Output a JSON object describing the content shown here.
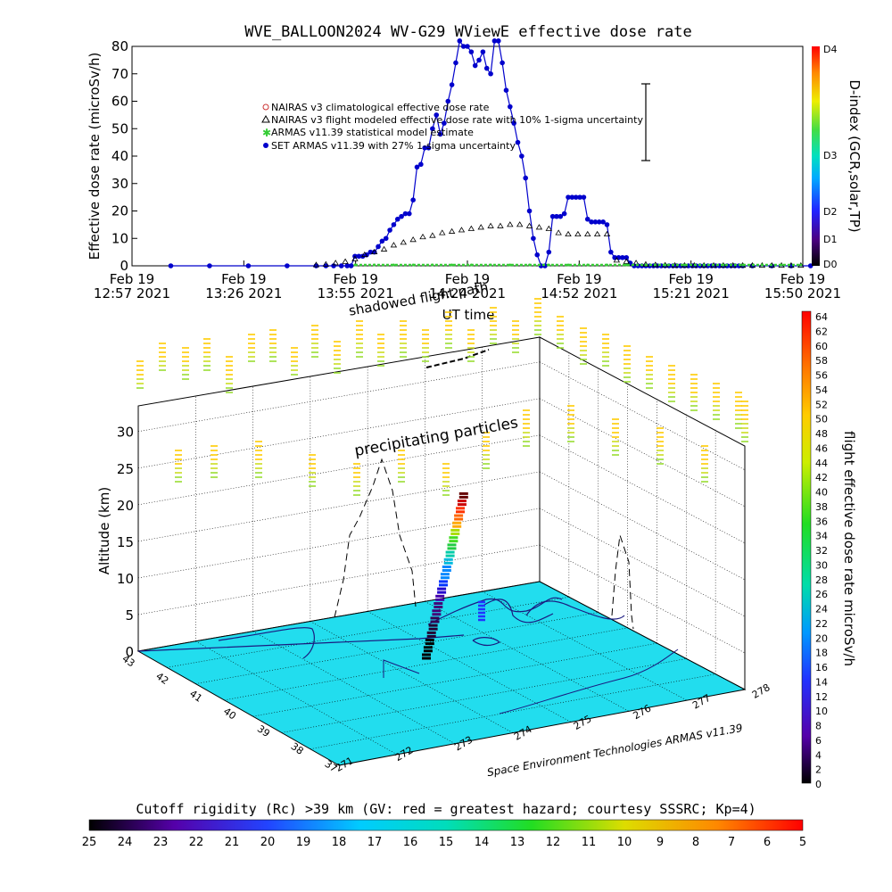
{
  "page_title": "WVE_BALLOON2024 WV-G29 WViewE effective dose rate",
  "colors": {
    "nairas_clim": "#cc3333",
    "nairas_flight": "#000000",
    "armas_stat": "#33cc33",
    "set_armas": "#0000cc",
    "ground": "#22ddee",
    "path": "#1a1a80"
  },
  "legend": [
    {
      "symbol": "diamond-red",
      "label": "NAIRAS v3 climatological effective dose rate"
    },
    {
      "symbol": "triangle",
      "label": "NAIRAS v3 flight modeled effective dose rate with 10% 1-sigma uncertainty"
    },
    {
      "symbol": "star-green",
      "label": "ARMAS v11.39 statistical model estimate"
    },
    {
      "symbol": "dot-blue",
      "label": "SET ARMAS v11.39 with 27% 1-sigma uncertainty"
    }
  ],
  "annotations": {
    "shadowed": "shadowed flight path",
    "precipitating": "precipitating particles",
    "credit": "Space Environment Technologies ARMAS v11.39"
  },
  "right_axis": {
    "label": "D-index (GCR,solar,TP)",
    "ticks": [
      "D4",
      "D3",
      "D2",
      "D1",
      "D0"
    ]
  },
  "colorbar_right": {
    "label": "flight effective dose rate microSv/h",
    "ticks": [
      "64",
      "62",
      "60",
      "58",
      "56",
      "54",
      "52",
      "50",
      "48",
      "46",
      "44",
      "42",
      "40",
      "38",
      "36",
      "34",
      "32",
      "30",
      "28",
      "26",
      "24",
      "22",
      "20",
      "18",
      "16",
      "14",
      "12",
      "10",
      "8",
      "6",
      "4",
      "2",
      "0"
    ]
  },
  "colorbar_bottom": {
    "label": "Cutoff rigidity (Rc) >39 km (GV: red = greatest hazard; courtesy SSSRC; Kp=4)",
    "ticks": [
      "25",
      "24",
      "23",
      "22",
      "21",
      "20",
      "19",
      "18",
      "17",
      "16",
      "15",
      "14",
      "13",
      "12",
      "11",
      "10",
      "9",
      "8",
      "7",
      "6",
      "5"
    ]
  },
  "chart_data": [
    {
      "type": "line",
      "title": "WVE_BALLOON2024 WV-G29 WViewE effective dose rate",
      "xlabel": "UT time",
      "ylabel": "Effective dose rate (microSv/h)",
      "ylim": [
        0,
        80
      ],
      "yticks": [
        "80",
        "70",
        "60",
        "50",
        "40",
        "30",
        "20",
        "10",
        "0"
      ],
      "xticks": [
        {
          "line1": "Feb 19",
          "line2": "12:57 2021"
        },
        {
          "line1": "Feb 19",
          "line2": "13:26 2021"
        },
        {
          "line1": "Feb 19",
          "line2": "13:55 2021"
        },
        {
          "line1": "Feb 19",
          "line2": "14:24 2021"
        },
        {
          "line1": "Feb 19",
          "line2": "14:52 2021"
        },
        {
          "line1": "Feb 19",
          "line2": "15:21 2021"
        },
        {
          "line1": "Feb 19",
          "line2": "15:50 2021"
        }
      ],
      "x_unit": "minutes after 12:57 UT",
      "series": [
        {
          "name": "SET ARMAS v11.39 with 27% 1-sigma uncertainty",
          "x": [
            20,
            40,
            60,
            80,
            95,
            100,
            104,
            108,
            111,
            113,
            115,
            117,
            119,
            121,
            123,
            125,
            127,
            129,
            131,
            133,
            135,
            137,
            139,
            141,
            143,
            145,
            147,
            149,
            151,
            153,
            155,
            157,
            159,
            161,
            163,
            165,
            167,
            169,
            171,
            173,
            175,
            177,
            179,
            181,
            183,
            185,
            187,
            189,
            191,
            193,
            195,
            197,
            199,
            201,
            203,
            205,
            207,
            209,
            211,
            213,
            215,
            217,
            219,
            221,
            223,
            225,
            227,
            229,
            231,
            233,
            235,
            237,
            239,
            241,
            243,
            245,
            247,
            249,
            251,
            253,
            255,
            257,
            259,
            261,
            263,
            265,
            267,
            269,
            271,
            273,
            275,
            277,
            279,
            281,
            283,
            285,
            287,
            289,
            291,
            293,
            295,
            297,
            299,
            301,
            303,
            305,
            307,
            309,
            311,
            313,
            315,
            320,
            330,
            340,
            350
          ],
          "y": [
            0,
            0,
            0,
            0,
            0,
            0,
            0,
            0,
            0,
            0,
            3.5,
            3.5,
            3.5,
            4,
            5,
            5,
            7,
            9,
            10,
            13,
            15,
            17,
            18,
            19,
            19,
            24,
            36,
            37,
            43,
            43,
            50,
            55,
            48,
            52,
            60,
            66,
            74,
            82,
            80,
            80,
            78,
            73,
            75,
            78,
            72,
            70,
            82,
            83,
            74,
            64,
            58,
            52,
            45,
            40,
            32,
            20,
            10,
            4,
            0,
            0,
            5,
            18,
            18,
            18,
            19,
            25,
            25,
            25,
            25,
            25,
            17,
            16,
            16,
            16,
            16,
            15,
            5,
            3,
            3,
            3,
            3,
            1,
            0,
            0,
            0,
            0,
            0,
            0,
            0,
            0,
            0,
            0,
            0,
            0,
            0,
            0,
            0,
            0,
            0,
            0,
            0,
            0,
            0,
            0,
            0,
            0,
            0,
            0,
            0,
            0,
            0,
            0,
            0,
            0,
            0
          ]
        },
        {
          "name": "NAIRAS v3 flight modeled effective dose rate with 10% 1-sigma uncertainty",
          "x": [
            95,
            100,
            105,
            110,
            115,
            120,
            125,
            130,
            135,
            140,
            145,
            150,
            155,
            160,
            165,
            170,
            175,
            180,
            185,
            190,
            195,
            200,
            205,
            210,
            215,
            220,
            225,
            230,
            235,
            240,
            245,
            250,
            255,
            260,
            265,
            270,
            275,
            280,
            285,
            290,
            295,
            300,
            305,
            310,
            315,
            320,
            325,
            330,
            335,
            340,
            345
          ],
          "y": [
            0.3,
            0.5,
            1,
            1.5,
            2.5,
            4,
            5,
            6,
            7.5,
            8.5,
            9.5,
            10.5,
            11,
            12,
            12.5,
            13,
            13.5,
            14,
            14.5,
            14.5,
            15,
            15,
            14.5,
            14,
            13.5,
            12,
            11.5,
            11.5,
            11.5,
            11.5,
            11.5,
            2,
            1.5,
            1,
            0.5,
            0.3,
            0.2,
            0.1,
            0.1,
            0.1,
            0.1,
            0.1,
            0.1,
            0.1,
            0.1,
            0.1,
            0.1,
            0.1,
            0.1,
            0.1,
            0.1
          ]
        },
        {
          "name": "ARMAS v11.39 statistical model estimate",
          "x": [
            115,
            125,
            135,
            145,
            155,
            165,
            175,
            185,
            195,
            205,
            215,
            225,
            235,
            245,
            255,
            265,
            275,
            285,
            295,
            305,
            315,
            325,
            335,
            345
          ],
          "y": [
            0,
            0,
            0,
            0,
            0,
            0,
            0,
            0,
            0,
            0,
            0,
            0,
            0,
            0,
            0,
            0,
            0,
            0,
            0,
            0,
            0,
            0,
            0,
            0
          ]
        }
      ]
    },
    {
      "type": "scatter",
      "title": "",
      "zlabel": "Altitude (km)",
      "zticks": [
        "0",
        "5",
        "10",
        "15",
        "20",
        "25",
        "30"
      ],
      "lat_ticks": [
        "43",
        "42",
        "41",
        "40",
        "39",
        "38",
        "37"
      ],
      "lon_ticks": [
        "271",
        "272",
        "273",
        "274",
        "275",
        "276",
        "277",
        "278"
      ],
      "altitude_profile_km": [
        0,
        1,
        2,
        3,
        4,
        5,
        6,
        7,
        8,
        9,
        10,
        11,
        12,
        13,
        14,
        15,
        16,
        17,
        18,
        19,
        20,
        21,
        22
      ],
      "dose_rate_microSv_h": [
        1,
        2,
        2,
        3,
        4,
        6,
        8,
        10,
        12,
        14,
        16,
        18,
        20,
        22,
        24,
        26,
        28,
        32,
        38,
        44,
        48,
        52,
        56
      ]
    }
  ]
}
